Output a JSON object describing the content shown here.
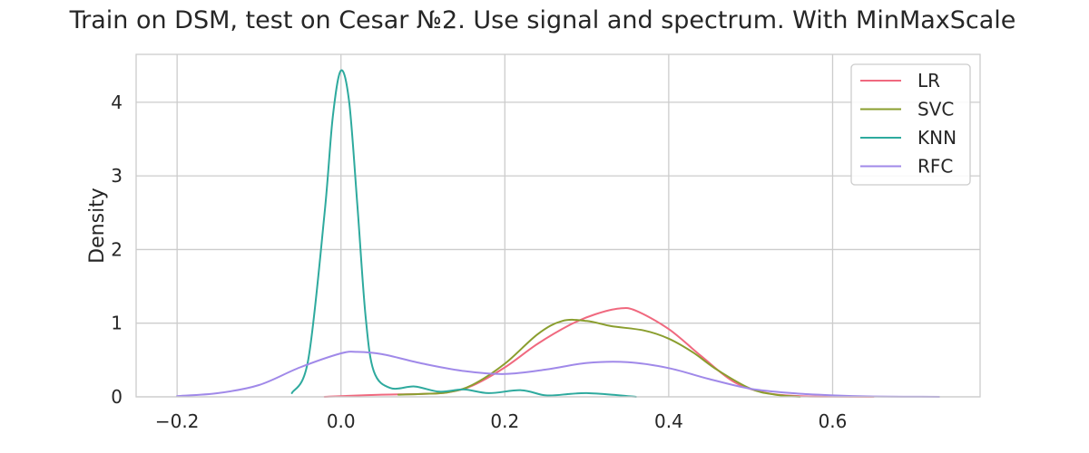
{
  "chart_data": {
    "type": "line",
    "title": "Train on DSM, test on Cesar №2. Use signal and spectrum. With MinMaxScale",
    "xlabel": "",
    "ylabel": "Density",
    "xlim": [
      -0.25,
      0.78
    ],
    "ylim": [
      0,
      4.65
    ],
    "xticks": [
      -0.2,
      0.0,
      0.2,
      0.4,
      0.6
    ],
    "xtick_labels": [
      "−0.2",
      "0.0",
      "0.2",
      "0.4",
      "0.6"
    ],
    "yticks": [
      0,
      1,
      2,
      3,
      4
    ],
    "ytick_labels": [
      "0",
      "1",
      "2",
      "3",
      "4"
    ],
    "grid": true,
    "legend_position": "top-right",
    "series": [
      {
        "name": "LR",
        "color": "#f0697f",
        "x": [
          -0.02,
          0.0,
          0.05,
          0.1,
          0.13,
          0.16,
          0.2,
          0.24,
          0.28,
          0.31,
          0.34,
          0.36,
          0.4,
          0.44,
          0.48,
          0.52,
          0.56,
          0.6,
          0.65
        ],
        "y": [
          0.0,
          0.01,
          0.03,
          0.04,
          0.06,
          0.15,
          0.4,
          0.72,
          0.98,
          1.12,
          1.2,
          1.17,
          0.92,
          0.55,
          0.2,
          0.05,
          0.01,
          0.003,
          0.0
        ]
      },
      {
        "name": "SVC",
        "color": "#8a9e2e",
        "x": [
          0.07,
          0.1,
          0.13,
          0.16,
          0.2,
          0.24,
          0.27,
          0.3,
          0.33,
          0.37,
          0.4,
          0.43,
          0.46,
          0.5,
          0.53,
          0.56
        ],
        "y": [
          0.03,
          0.04,
          0.06,
          0.16,
          0.45,
          0.85,
          1.03,
          1.03,
          0.96,
          0.9,
          0.79,
          0.6,
          0.36,
          0.11,
          0.03,
          0.0
        ]
      },
      {
        "name": "KNN",
        "color": "#2eaa9e",
        "x": [
          -0.06,
          -0.04,
          -0.02,
          -0.01,
          0.0,
          0.01,
          0.02,
          0.03,
          0.04,
          0.06,
          0.09,
          0.12,
          0.15,
          0.18,
          0.22,
          0.25,
          0.28,
          0.3,
          0.33,
          0.36
        ],
        "y": [
          0.05,
          0.5,
          2.5,
          3.8,
          4.43,
          4.0,
          2.6,
          1.1,
          0.35,
          0.12,
          0.14,
          0.07,
          0.1,
          0.05,
          0.09,
          0.02,
          0.04,
          0.05,
          0.03,
          0.0
        ]
      },
      {
        "name": "RFC",
        "color": "#a089e9",
        "x": [
          -0.2,
          -0.15,
          -0.1,
          -0.05,
          0.0,
          0.02,
          0.05,
          0.1,
          0.15,
          0.2,
          0.25,
          0.3,
          0.35,
          0.4,
          0.45,
          0.5,
          0.55,
          0.6,
          0.65,
          0.73
        ],
        "y": [
          0.01,
          0.05,
          0.16,
          0.4,
          0.59,
          0.61,
          0.58,
          0.45,
          0.35,
          0.31,
          0.37,
          0.46,
          0.47,
          0.39,
          0.24,
          0.11,
          0.05,
          0.02,
          0.005,
          0.0
        ]
      }
    ]
  }
}
